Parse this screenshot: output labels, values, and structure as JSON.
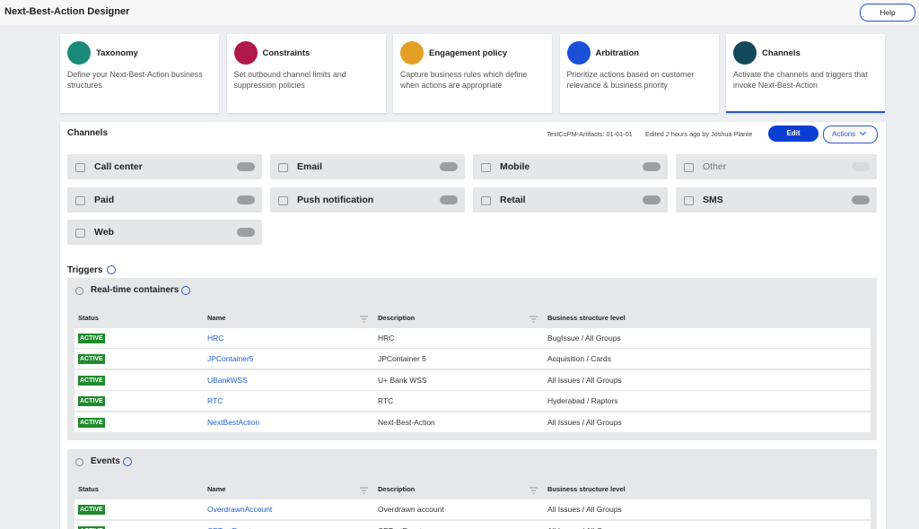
{
  "header": {
    "title": "Next-Best-Action Designer",
    "help": "Help"
  },
  "steps": [
    {
      "title": "Taxonomy",
      "description": "Define your Next-Best-Action business structures"
    },
    {
      "title": "Constraints",
      "description": "Set outbound channel limits and suppression policies"
    },
    {
      "title": "Engagement policy",
      "description": "Capture business rules which define when actions are appropriate"
    },
    {
      "title": "Arbitration",
      "description": "Prioritize actions based on customer relevance & business priority"
    },
    {
      "title": "Channels",
      "description": "Activate the channels and triggers that invoke Next-Best-Action"
    }
  ],
  "channels": {
    "title": "Channels",
    "artifact": "TestCoPM-Artifacts: 01-01-01",
    "edited": "Edited 2 hours ago by Joshua Plante",
    "edit": "Edit",
    "actions": "Actions",
    "items": [
      {
        "name": "Call center",
        "on": true
      },
      {
        "name": "Email",
        "on": true
      },
      {
        "name": "Mobile",
        "on": true
      },
      {
        "name": "Other",
        "on": false
      },
      {
        "name": "Paid",
        "on": true
      },
      {
        "name": "Push notification",
        "on": true
      },
      {
        "name": "Retail",
        "on": true
      },
      {
        "name": "SMS",
        "on": true
      },
      {
        "name": "Web",
        "on": true
      }
    ]
  },
  "triggers": {
    "title": "Triggers",
    "sections": [
      {
        "title": "Real-time containers",
        "columns": [
          "Status",
          "Name",
          "Description",
          "Business structure level"
        ],
        "rows": [
          [
            "ACTIVE",
            "HRC",
            "HRC",
            "BugIssue / All Groups"
          ],
          [
            "ACTIVE",
            "JPContainer5",
            "JPContainer 5",
            "Acquisition / Cards"
          ],
          [
            "ACTIVE",
            "UBankWSS",
            "U+ Bank WSS",
            "All Issues / All Groups"
          ],
          [
            "ACTIVE",
            "RTC",
            "RTC",
            "Hyderabad / Raptors"
          ],
          [
            "ACTIVE",
            "NextBestAction",
            "Next-Best-Action",
            "All Issues / All Groups"
          ]
        ]
      },
      {
        "title": "Events",
        "columns": [
          "Status",
          "Name",
          "Description",
          "Business structure level"
        ],
        "rows": [
          [
            "ACTIVE",
            "OverdrawnAccount",
            "Overdrawn account",
            "All Issues / All Groups"
          ],
          [
            "ACTIVE",
            "CPTestEvent",
            "CPTestEvent",
            "All Issues / All Groups"
          ]
        ]
      }
    ]
  }
}
